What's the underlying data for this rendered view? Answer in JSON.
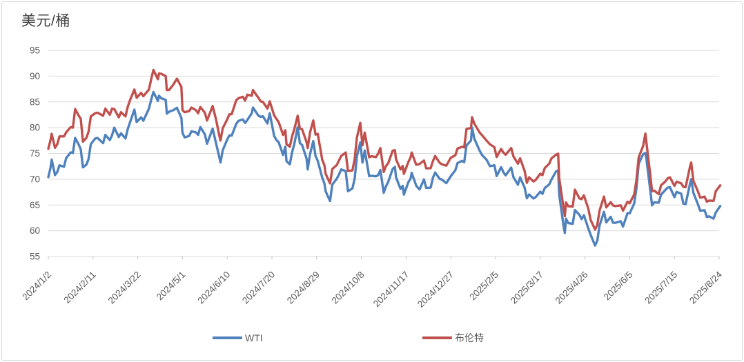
{
  "chart": {
    "unit_label": "美元/桶",
    "colors": {
      "background": "#FFFFFF",
      "frame_border": "#D7D7D7",
      "gridline": "#D9D9D9",
      "axis_line": "#D9D9D9",
      "tick_mark": "#BFBFBF",
      "axis_text": "#595959",
      "title_text": "#404040"
    }
  },
  "chart_data": {
    "type": "line",
    "title": "美元/桶",
    "xlabel": "",
    "ylabel": "美元/桶",
    "ylim": [
      55,
      95
    ],
    "yticks": [
      55,
      60,
      65,
      70,
      75,
      80,
      85,
      90,
      95
    ],
    "grid": true,
    "legend_position": "bottom",
    "x_tick_labels": [
      "2024/1/2",
      "2024/2/11",
      "2024/3/22",
      "2024/5/1",
      "2024/6/10",
      "2024/7/20",
      "2024/8/29",
      "2024/10/8",
      "2024/11/17",
      "2024/12/27",
      "2025/2/5",
      "2025/3/17",
      "2025/4/26",
      "2025/6/5",
      "2025/7/15",
      "2025/8/24"
    ],
    "x_start_date": "2024/1/2",
    "x_end_date": "2025/8/24",
    "x": [
      "2024/1/2",
      "2024/1/4",
      "2024/1/5",
      "2024/1/8",
      "2024/1/10",
      "2024/1/12",
      "2024/1/16",
      "2024/1/18",
      "2024/1/22",
      "2024/1/24",
      "2024/1/26",
      "2024/1/29",
      "2024/1/31",
      "2024/2/2",
      "2024/2/5",
      "2024/2/7",
      "2024/2/9",
      "2024/2/13",
      "2024/2/15",
      "2024/2/20",
      "2024/2/22",
      "2024/2/26",
      "2024/2/28",
      "2024/3/1",
      "2024/3/5",
      "2024/3/7",
      "2024/3/11",
      "2024/3/13",
      "2024/3/15",
      "2024/3/19",
      "2024/3/21",
      "2024/3/25",
      "2024/3/27",
      "2024/4/1",
      "2024/4/3",
      "2024/4/5",
      "2024/4/9",
      "2024/4/10",
      "2024/4/12",
      "2024/4/16",
      "2024/4/17",
      "2024/4/19",
      "2024/4/23",
      "2024/4/26",
      "2024/4/30",
      "2024/5/1",
      "2024/5/3",
      "2024/5/7",
      "2024/5/9",
      "2024/5/13",
      "2024/5/15",
      "2024/5/17",
      "2024/5/21",
      "2024/5/23",
      "2024/5/28",
      "2024/5/31",
      "2024/6/3",
      "2024/6/4",
      "2024/6/6",
      "2024/6/10",
      "2024/6/12",
      "2024/6/14",
      "2024/6/18",
      "2024/6/20",
      "2024/6/24",
      "2024/6/26",
      "2024/6/28",
      "2024/7/2",
      "2024/7/3",
      "2024/7/8",
      "2024/7/10",
      "2024/7/12",
      "2024/7/16",
      "2024/7/18",
      "2024/7/22",
      "2024/7/24",
      "2024/7/26",
      "2024/7/30",
      "2024/8/1",
      "2024/8/2",
      "2024/8/5",
      "2024/8/7",
      "2024/8/9",
      "2024/8/12",
      "2024/8/14",
      "2024/8/16",
      "2024/8/20",
      "2024/8/21",
      "2024/8/23",
      "2024/8/26",
      "2024/8/28",
      "2024/8/30",
      "2024/9/3",
      "2024/9/5",
      "2024/9/6",
      "2024/9/10",
      "2024/9/12",
      "2024/9/16",
      "2024/9/18",
      "2024/9/20",
      "2024/9/24",
      "2024/9/26",
      "2024/9/30",
      "2024/10/2",
      "2024/10/4",
      "2024/10/7",
      "2024/10/9",
      "2024/10/11",
      "2024/10/15",
      "2024/10/17",
      "2024/10/21",
      "2024/10/23",
      "2024/10/25",
      "2024/10/28",
      "2024/10/30",
      "2024/11/1",
      "2024/11/5",
      "2024/11/7",
      "2024/11/8",
      "2024/11/12",
      "2024/11/14",
      "2024/11/15",
      "2024/11/19",
      "2024/11/21",
      "2024/11/22",
      "2024/11/26",
      "2024/11/29",
      "2024/12/3",
      "2024/12/5",
      "2024/12/9",
      "2024/12/11",
      "2024/12/13",
      "2024/12/17",
      "2024/12/19",
      "2024/12/23",
      "2024/12/27",
      "2024/12/31",
      "2025/1/2",
      "2025/1/6",
      "2025/1/8",
      "2025/1/10",
      "2025/1/14",
      "2025/1/15",
      "2025/1/17",
      "2025/1/22",
      "2025/1/24",
      "2025/1/28",
      "2025/1/31",
      "2025/2/4",
      "2025/2/6",
      "2025/2/10",
      "2025/2/12",
      "2025/2/14",
      "2025/2/19",
      "2025/2/21",
      "2025/2/25",
      "2025/2/27",
      "2025/3/3",
      "2025/3/5",
      "2025/3/7",
      "2025/3/11",
      "2025/3/13",
      "2025/3/17",
      "2025/3/19",
      "2025/3/21",
      "2025/3/25",
      "2025/3/27",
      "2025/3/31",
      "2025/4/2",
      "2025/4/3",
      "2025/4/7",
      "2025/4/8",
      "2025/4/9",
      "2025/4/11",
      "2025/4/15",
      "2025/4/17",
      "2025/4/21",
      "2025/4/23",
      "2025/4/25",
      "2025/4/29",
      "2025/5/1",
      "2025/5/5",
      "2025/5/7",
      "2025/5/9",
      "2025/5/13",
      "2025/5/15",
      "2025/5/19",
      "2025/5/21",
      "2025/5/23",
      "2025/5/28",
      "2025/5/30",
      "2025/6/3",
      "2025/6/5",
      "2025/6/9",
      "2025/6/11",
      "2025/6/13",
      "2025/6/17",
      "2025/6/19",
      "2025/6/20",
      "2025/6/23",
      "2025/6/25",
      "2025/6/27",
      "2025/7/1",
      "2025/7/3",
      "2025/7/7",
      "2025/7/9",
      "2025/7/11",
      "2025/7/15",
      "2025/7/17",
      "2025/7/21",
      "2025/7/23",
      "2025/7/25",
      "2025/7/29",
      "2025/7/30",
      "2025/8/1",
      "2025/8/5",
      "2025/8/7",
      "2025/8/11",
      "2025/8/13",
      "2025/8/15",
      "2025/8/19",
      "2025/8/21",
      "2025/8/25"
    ],
    "series": [
      {
        "name": "WTI",
        "color": "#4F81BD",
        "values": [
          70.4,
          72.2,
          73.8,
          70.8,
          71.4,
          72.7,
          72.4,
          74.1,
          75.2,
          75.1,
          78.0,
          76.8,
          75.8,
          72.3,
          72.8,
          73.9,
          76.8,
          77.9,
          78.0,
          77.0,
          78.6,
          77.6,
          78.5,
          80.0,
          78.2,
          78.9,
          77.9,
          79.7,
          81.0,
          83.5,
          81.1,
          82.0,
          81.35,
          83.7,
          85.4,
          86.9,
          85.2,
          86.2,
          85.7,
          85.4,
          82.7,
          83.1,
          83.4,
          83.85,
          81.9,
          79.0,
          78.1,
          78.4,
          79.3,
          79.1,
          78.6,
          80.1,
          78.7,
          76.9,
          79.8,
          77.0,
          74.2,
          73.25,
          75.6,
          77.7,
          78.5,
          78.45,
          80.7,
          81.3,
          81.6,
          80.9,
          81.5,
          82.8,
          83.9,
          82.3,
          82.1,
          82.2,
          80.8,
          82.8,
          78.4,
          77.6,
          77.2,
          74.7,
          76.3,
          73.5,
          72.9,
          75.2,
          76.8,
          80.1,
          77.0,
          76.65,
          74.0,
          71.9,
          74.8,
          77.4,
          74.5,
          73.55,
          70.3,
          69.15,
          67.67,
          65.75,
          68.97,
          70.1,
          70.9,
          71.9,
          71.56,
          67.67,
          68.2,
          70.1,
          74.4,
          77.14,
          73.24,
          75.56,
          70.58,
          70.67,
          70.56,
          70.77,
          71.78,
          67.38,
          68.61,
          69.49,
          71.99,
          72.36,
          70.38,
          68.12,
          68.7,
          67.02,
          69.39,
          70.1,
          71.24,
          68.77,
          68.0,
          69.94,
          68.3,
          68.37,
          70.29,
          71.29,
          70.08,
          69.91,
          69.24,
          70.6,
          71.72,
          73.13,
          73.56,
          73.32,
          76.57,
          77.5,
          80.04,
          77.88,
          75.44,
          74.66,
          73.77,
          72.53,
          72.7,
          70.61,
          72.32,
          71.37,
          70.74,
          72.25,
          70.4,
          68.93,
          70.35,
          68.37,
          66.31,
          67.04,
          66.25,
          66.55,
          67.58,
          67.16,
          68.28,
          69.0,
          69.92,
          71.48,
          71.71,
          66.95,
          60.7,
          59.58,
          62.35,
          61.5,
          61.33,
          64.01,
          63.08,
          62.27,
          63.02,
          60.42,
          59.24,
          57.13,
          58.07,
          61.02,
          63.67,
          61.62,
          62.69,
          61.57,
          61.53,
          61.84,
          60.79,
          63.41,
          63.37,
          65.29,
          68.15,
          72.98,
          74.84,
          75.1,
          73.84,
          68.51,
          64.92,
          65.52,
          65.45,
          67.0,
          67.93,
          68.38,
          68.45,
          66.52,
          67.54,
          67.2,
          65.25,
          65.16,
          69.21,
          70.0,
          67.33,
          65.16,
          63.88,
          63.96,
          62.65,
          62.8,
          62.35,
          63.52,
          64.8
        ]
      },
      {
        "name": "布伦特",
        "color": "#C0504D",
        "values": [
          75.9,
          77.6,
          78.8,
          76.1,
          76.8,
          78.3,
          78.3,
          79.1,
          80.1,
          80.0,
          83.6,
          82.4,
          81.7,
          77.3,
          78.0,
          79.2,
          82.2,
          82.8,
          82.9,
          82.3,
          83.7,
          82.5,
          83.7,
          83.6,
          82.0,
          83.0,
          82.2,
          84.0,
          85.3,
          87.4,
          85.8,
          86.75,
          86.1,
          87.4,
          89.35,
          91.2,
          89.4,
          90.5,
          90.45,
          90.0,
          87.3,
          87.3,
          88.4,
          89.5,
          87.9,
          83.4,
          83.0,
          83.2,
          83.9,
          83.4,
          82.8,
          84.0,
          82.9,
          81.4,
          84.2,
          81.6,
          78.4,
          77.5,
          79.9,
          81.6,
          82.6,
          82.6,
          85.3,
          85.7,
          86.0,
          85.25,
          86.4,
          86.2,
          87.3,
          85.75,
          85.1,
          85.0,
          83.7,
          85.1,
          82.4,
          81.7,
          81.1,
          78.6,
          79.5,
          76.8,
          76.3,
          78.3,
          79.7,
          82.3,
          79.8,
          79.7,
          77.2,
          76.05,
          79.0,
          81.4,
          78.65,
          78.8,
          73.75,
          72.7,
          71.06,
          69.19,
          71.97,
          72.75,
          73.65,
          74.5,
          75.17,
          71.6,
          71.7,
          73.9,
          78.05,
          80.93,
          76.58,
          79.04,
          74.25,
          74.45,
          74.29,
          74.96,
          76.05,
          71.42,
          72.55,
          73.1,
          75.53,
          75.63,
          73.87,
          71.89,
          72.56,
          71.04,
          73.31,
          74.23,
          75.17,
          72.81,
          72.94,
          73.62,
          72.1,
          72.14,
          73.52,
          74.49,
          73.19,
          72.88,
          72.63,
          74.17,
          74.64,
          75.93,
          76.3,
          76.16,
          79.76,
          79.92,
          82.03,
          80.79,
          79.0,
          78.5,
          77.49,
          76.76,
          76.2,
          74.29,
          75.87,
          75.18,
          74.74,
          76.04,
          74.43,
          73.02,
          74.04,
          71.62,
          69.3,
          70.36,
          69.56,
          69.88,
          71.07,
          70.78,
          72.16,
          73.02,
          74.03,
          74.74,
          74.95,
          70.14,
          64.21,
          62.82,
          65.48,
          64.76,
          64.67,
          67.96,
          66.26,
          66.12,
          66.87,
          64.25,
          62.13,
          60.23,
          61.12,
          63.91,
          66.63,
          64.53,
          65.54,
          64.91,
          64.78,
          64.92,
          63.9,
          65.63,
          65.34,
          67.04,
          69.77,
          74.23,
          76.45,
          78.85,
          77.01,
          71.48,
          67.68,
          67.77,
          67.11,
          68.8,
          69.58,
          70.19,
          70.36,
          68.71,
          69.52,
          69.21,
          68.51,
          68.44,
          72.51,
          73.24,
          69.67,
          67.64,
          66.43,
          66.63,
          65.63,
          65.85,
          65.79,
          67.67,
          68.8
        ]
      }
    ]
  },
  "legend": {
    "wti_label": "WTI",
    "brent_label": "布伦特"
  }
}
